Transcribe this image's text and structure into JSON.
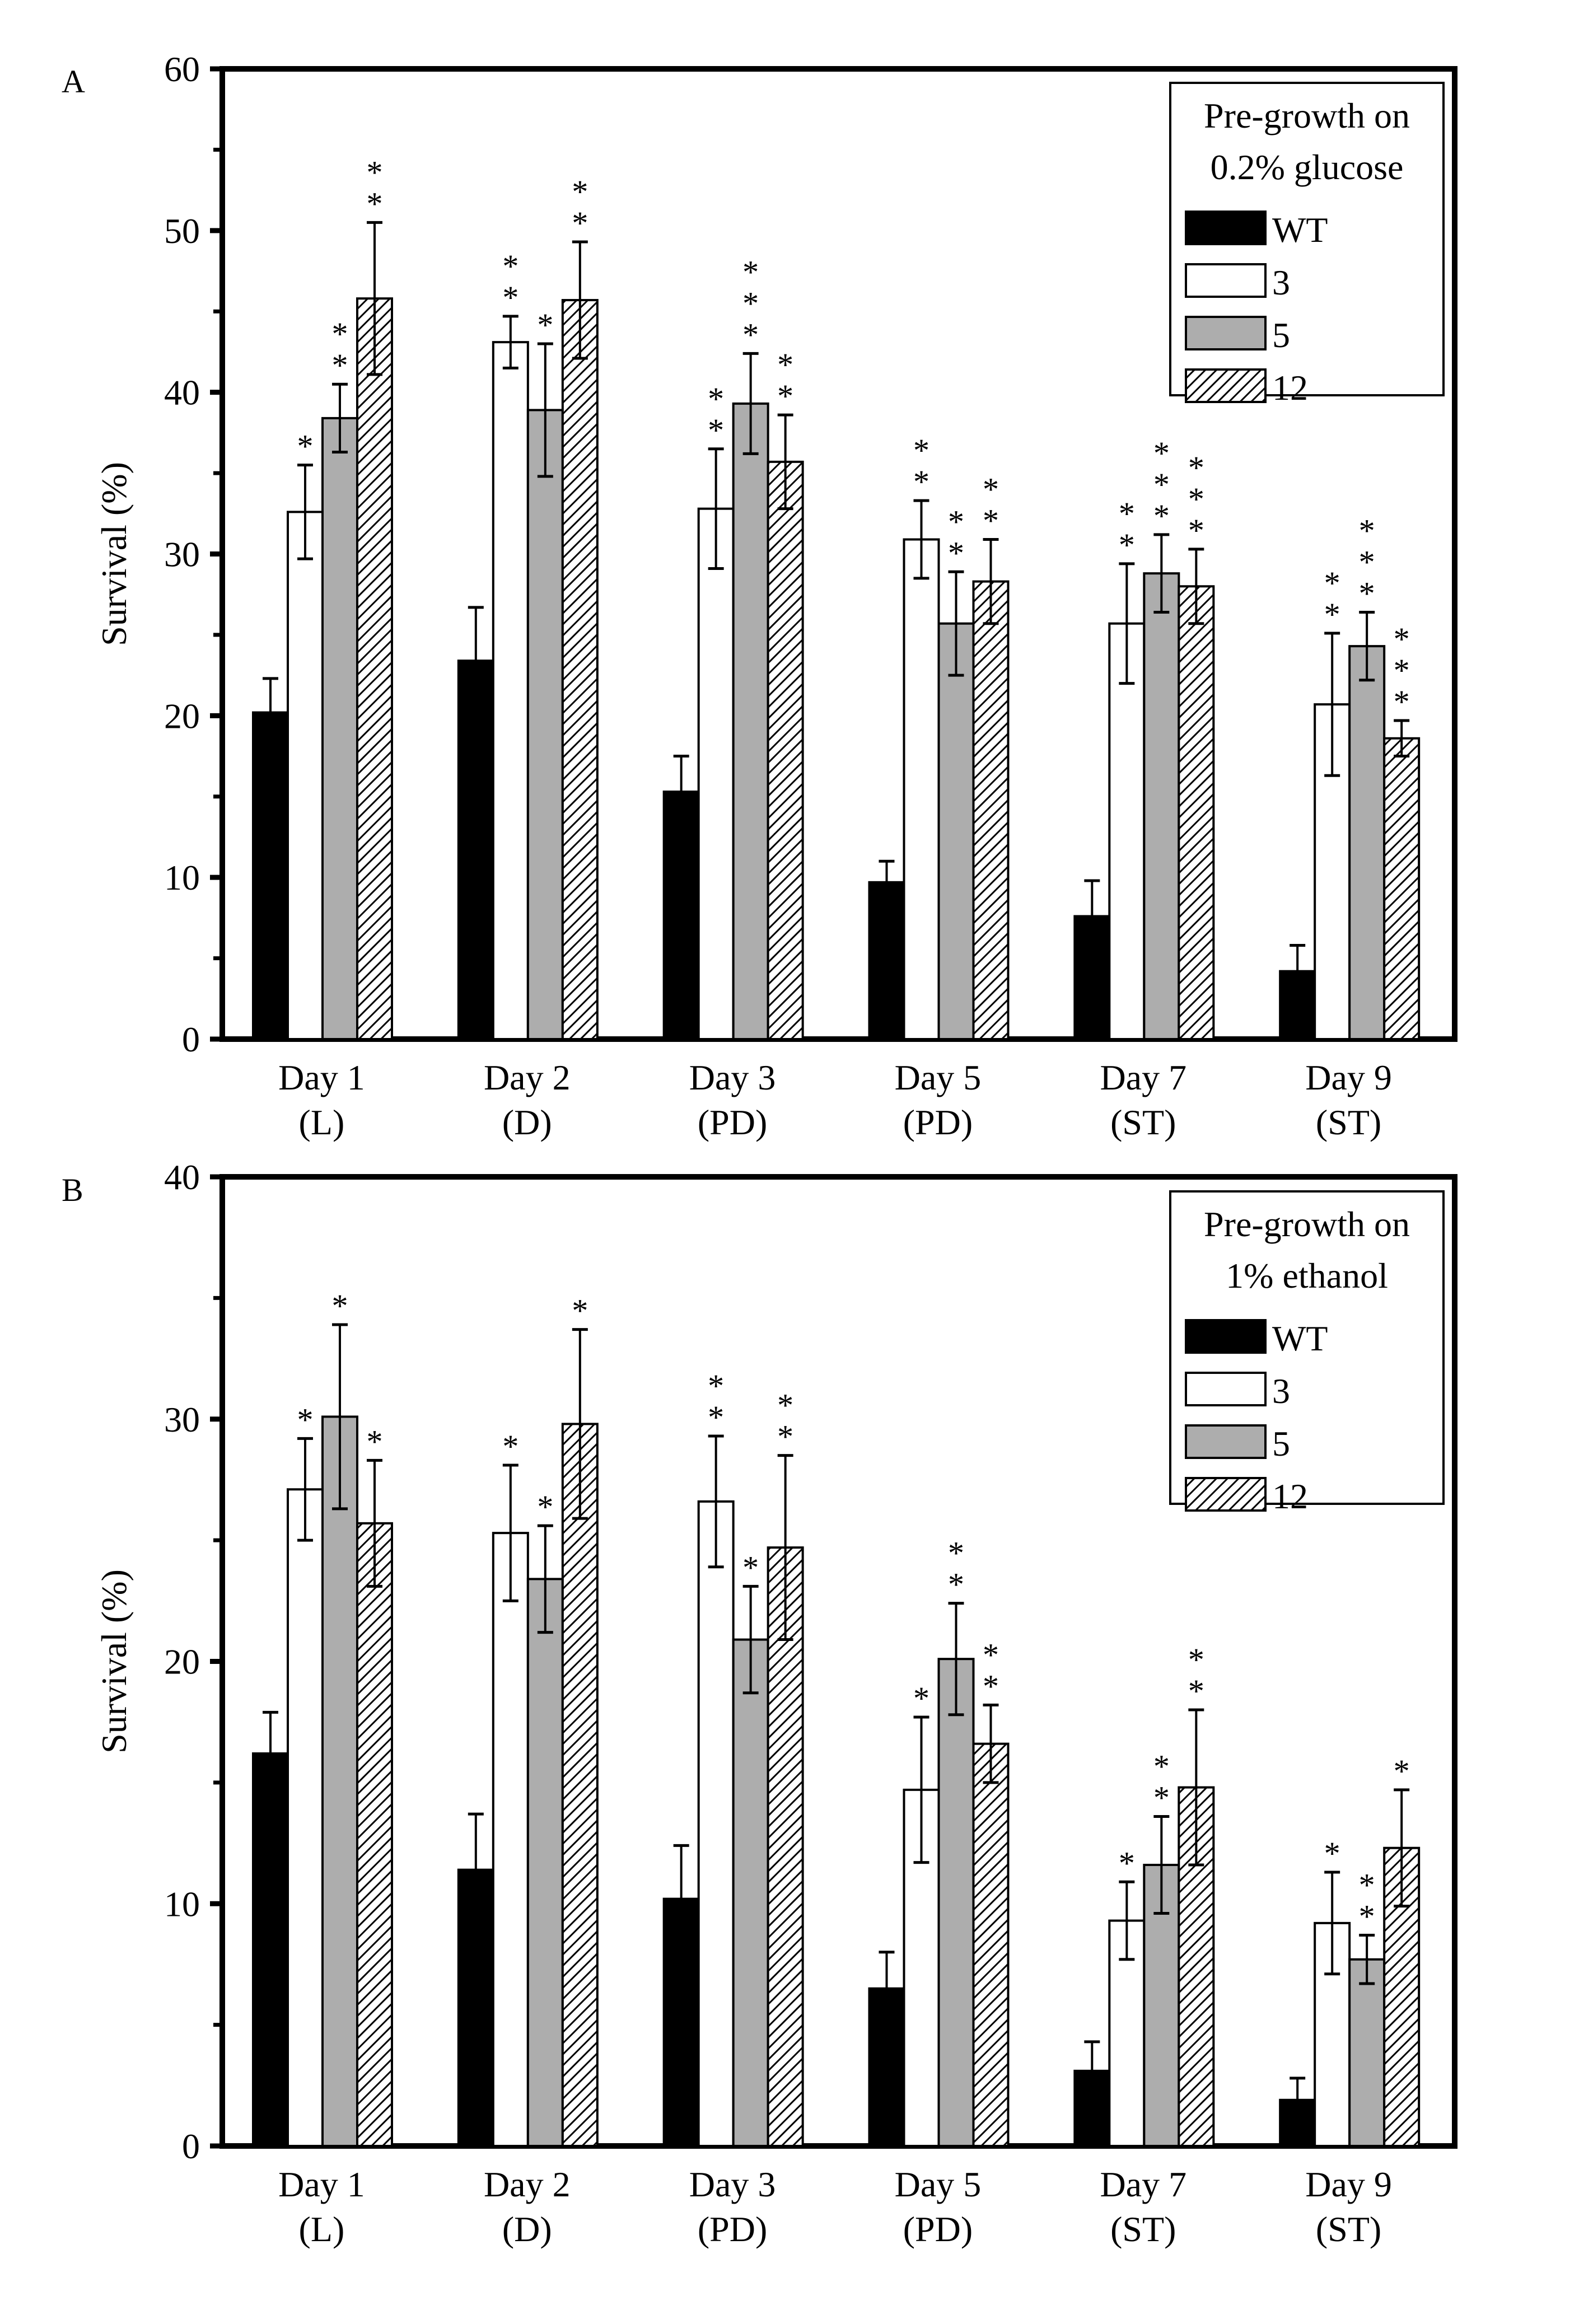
{
  "chart_data": [
    {
      "panel_label": "A",
      "type": "bar",
      "title": "",
      "xlabel": "",
      "ylabel": "Survival (%)",
      "ylim": [
        0,
        60
      ],
      "yticks": [
        0,
        10,
        20,
        30,
        40,
        50,
        60
      ],
      "grid": false,
      "legend_position": "top-right",
      "legend_title": [
        "Pre-growth on",
        "0.2% glucose"
      ],
      "categories": [
        [
          "Day 1",
          "(L)"
        ],
        [
          "Day 2",
          "(D)"
        ],
        [
          "Day 3",
          "(PD)"
        ],
        [
          "Day 5",
          "(PD)"
        ],
        [
          "Day 7",
          "(ST)"
        ],
        [
          "Day 9",
          "(ST)"
        ]
      ],
      "series": [
        {
          "name": "WT",
          "fill": "black",
          "values": [
            20.2,
            23.4,
            15.3,
            9.7,
            7.6,
            4.2
          ],
          "errors": [
            2.1,
            3.3,
            2.2,
            1.3,
            2.2,
            1.6
          ],
          "significance": [
            "",
            "",
            "",
            "",
            "",
            ""
          ]
        },
        {
          "name": "3",
          "fill": "white",
          "values": [
            32.6,
            43.1,
            32.8,
            30.9,
            25.7,
            20.7
          ],
          "errors": [
            2.9,
            1.6,
            3.7,
            2.4,
            3.7,
            4.4
          ],
          "significance": [
            "*",
            "**",
            "**",
            "**",
            "**",
            "**"
          ]
        },
        {
          "name": "5",
          "fill": "gray",
          "values": [
            38.4,
            38.9,
            39.3,
            25.7,
            28.8,
            24.3
          ],
          "errors": [
            2.1,
            4.1,
            3.1,
            3.2,
            2.4,
            2.1
          ],
          "significance": [
            "**",
            "*",
            "***",
            "**",
            "***",
            "***"
          ]
        },
        {
          "name": "12",
          "fill": "hatched",
          "values": [
            45.8,
            45.7,
            35.7,
            28.3,
            28.0,
            18.6
          ],
          "errors": [
            4.7,
            3.6,
            2.9,
            2.6,
            2.3,
            1.1
          ],
          "significance": [
            "**",
            "**",
            "**",
            "**",
            "***",
            "***"
          ]
        }
      ]
    },
    {
      "panel_label": "B",
      "type": "bar",
      "title": "",
      "xlabel": "",
      "ylabel": "Survival (%)",
      "ylim": [
        0,
        40
      ],
      "yticks": [
        0,
        10,
        20,
        30,
        40
      ],
      "grid": false,
      "legend_position": "top-right",
      "legend_title": [
        "Pre-growth on",
        "1% ethanol"
      ],
      "categories": [
        [
          "Day 1",
          "(L)"
        ],
        [
          "Day 2",
          "(D)"
        ],
        [
          "Day 3",
          "(PD)"
        ],
        [
          "Day 5",
          "(PD)"
        ],
        [
          "Day 7",
          "(ST)"
        ],
        [
          "Day 9",
          "(ST)"
        ]
      ],
      "series": [
        {
          "name": "WT",
          "fill": "black",
          "values": [
            16.2,
            11.4,
            10.2,
            6.5,
            3.1,
            1.9
          ],
          "errors": [
            1.7,
            2.3,
            2.2,
            1.5,
            1.2,
            0.9
          ],
          "significance": [
            "",
            "",
            "",
            "",
            "",
            ""
          ]
        },
        {
          "name": "3",
          "fill": "white",
          "values": [
            27.1,
            25.3,
            26.6,
            14.7,
            9.3,
            9.2
          ],
          "errors": [
            2.1,
            2.8,
            2.7,
            3.0,
            1.6,
            2.1
          ],
          "significance": [
            "*",
            "*",
            "**",
            "*",
            "*",
            "*"
          ]
        },
        {
          "name": "5",
          "fill": "gray",
          "values": [
            30.1,
            23.4,
            20.9,
            20.1,
            11.6,
            7.7
          ],
          "errors": [
            3.8,
            2.2,
            2.2,
            2.3,
            2.0,
            1.0
          ],
          "significance": [
            "*",
            "*",
            "*",
            "**",
            "**",
            "**"
          ]
        },
        {
          "name": "12",
          "fill": "hatched",
          "values": [
            25.7,
            29.8,
            24.7,
            16.6,
            14.8,
            12.3
          ],
          "errors": [
            2.6,
            3.9,
            3.8,
            1.6,
            3.2,
            2.4
          ],
          "significance": [
            "*",
            "*",
            "**",
            "**",
            "**",
            "*"
          ]
        }
      ]
    }
  ]
}
